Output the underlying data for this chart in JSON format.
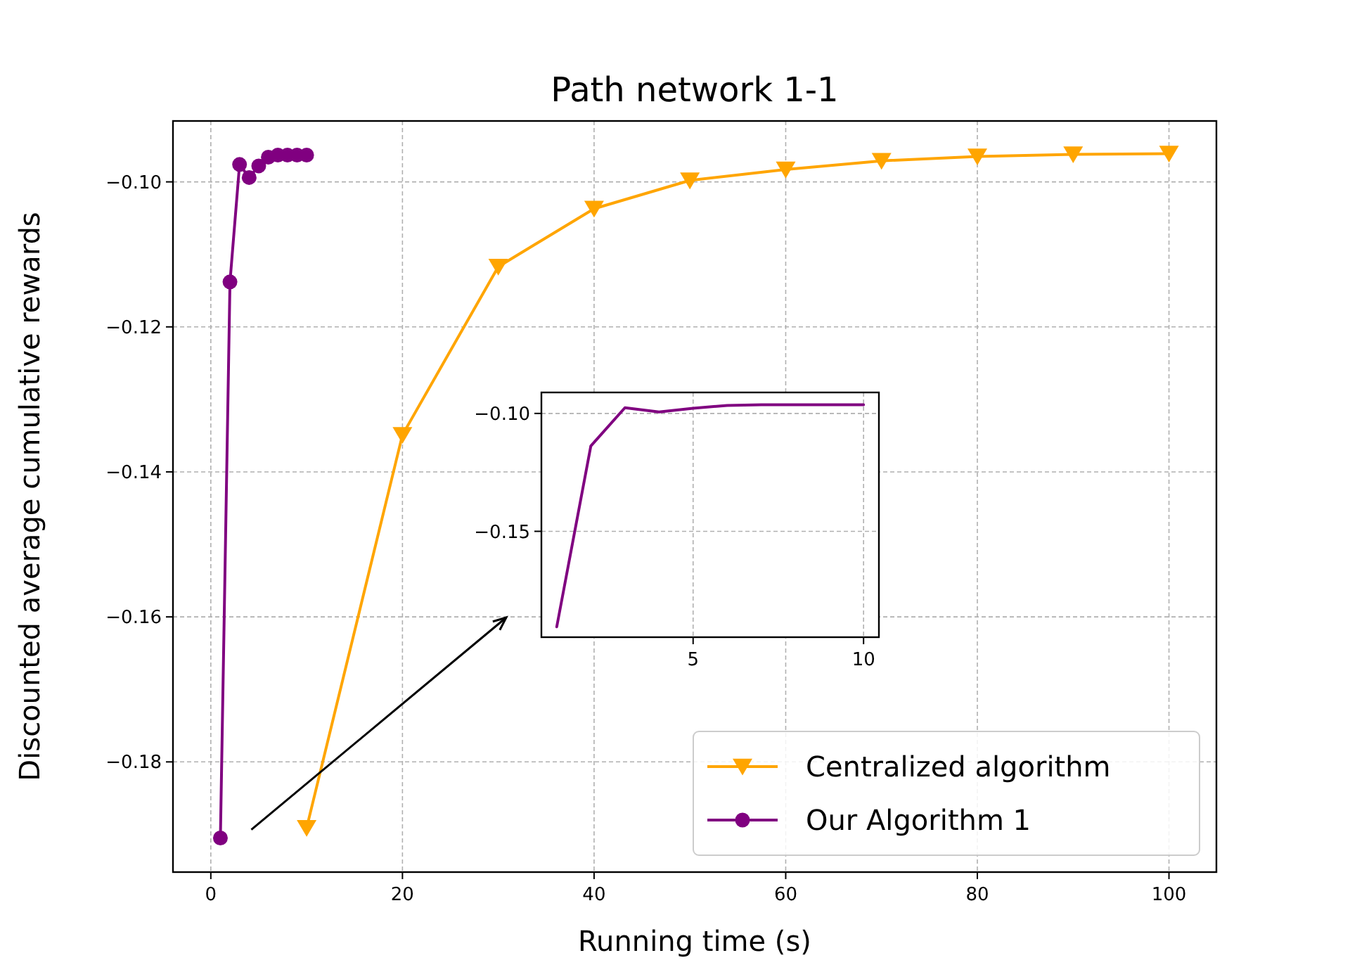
{
  "chart_data": [
    {
      "type": "line",
      "title": "Path network 1-1",
      "xlabel": "Running time (s)",
      "ylabel": "Discounted average cumulative rewards",
      "xlim": [
        -3.95,
        104.95
      ],
      "xticks": [
        0,
        20,
        40,
        60,
        80,
        100
      ],
      "ylim": [
        -0.1952,
        -0.0916
      ],
      "yticks": [
        {
          "value": -0.18,
          "label": "−0.18"
        },
        {
          "value": -0.16,
          "label": "−0.16"
        },
        {
          "value": -0.14,
          "label": "−0.14"
        },
        {
          "value": -0.12,
          "label": "−0.12"
        },
        {
          "value": -0.1,
          "label": "−0.10"
        }
      ],
      "grid": true,
      "legend": "bottom right",
      "series": [
        {
          "name": "Centralized algorithm",
          "color": "#ffa500",
          "marker": "triangle",
          "x": [
            10,
            20,
            30,
            40,
            50,
            60,
            70,
            80,
            90,
            100
          ],
          "values": [
            -0.1891,
            -0.1349,
            -0.1117,
            -0.1037,
            -0.0998,
            -0.0983,
            -0.0971,
            -0.0965,
            -0.0962,
            -0.0961
          ]
        },
        {
          "name": "Our Algorithm 1",
          "color": "#800080",
          "marker": "circle",
          "x": [
            1,
            2,
            3,
            4,
            5,
            6,
            7,
            8,
            9,
            10
          ],
          "values": [
            -0.1905,
            -0.1138,
            -0.0976,
            -0.0994,
            -0.0978,
            -0.0966,
            -0.0963,
            -0.0963,
            -0.0963,
            -0.0963
          ]
        }
      ]
    },
    {
      "type": "line",
      "xlim": [
        0.55,
        10.45
      ],
      "xticks": [
        5,
        10
      ],
      "ylim": [
        -0.1949,
        -0.0911
      ],
      "yticks": [
        {
          "value": -0.15,
          "label": "−0.15"
        },
        {
          "value": -0.1,
          "label": "−0.10"
        }
      ],
      "grid": true,
      "series": [
        {
          "color": "#800080",
          "x": [
            1,
            2,
            3,
            4,
            5,
            6,
            7,
            8,
            9,
            10
          ],
          "values": [
            -0.1905,
            -0.1138,
            -0.0976,
            -0.0994,
            -0.0978,
            -0.0966,
            -0.0963,
            -0.0963,
            -0.0963,
            -0.0963
          ]
        }
      ]
    }
  ]
}
